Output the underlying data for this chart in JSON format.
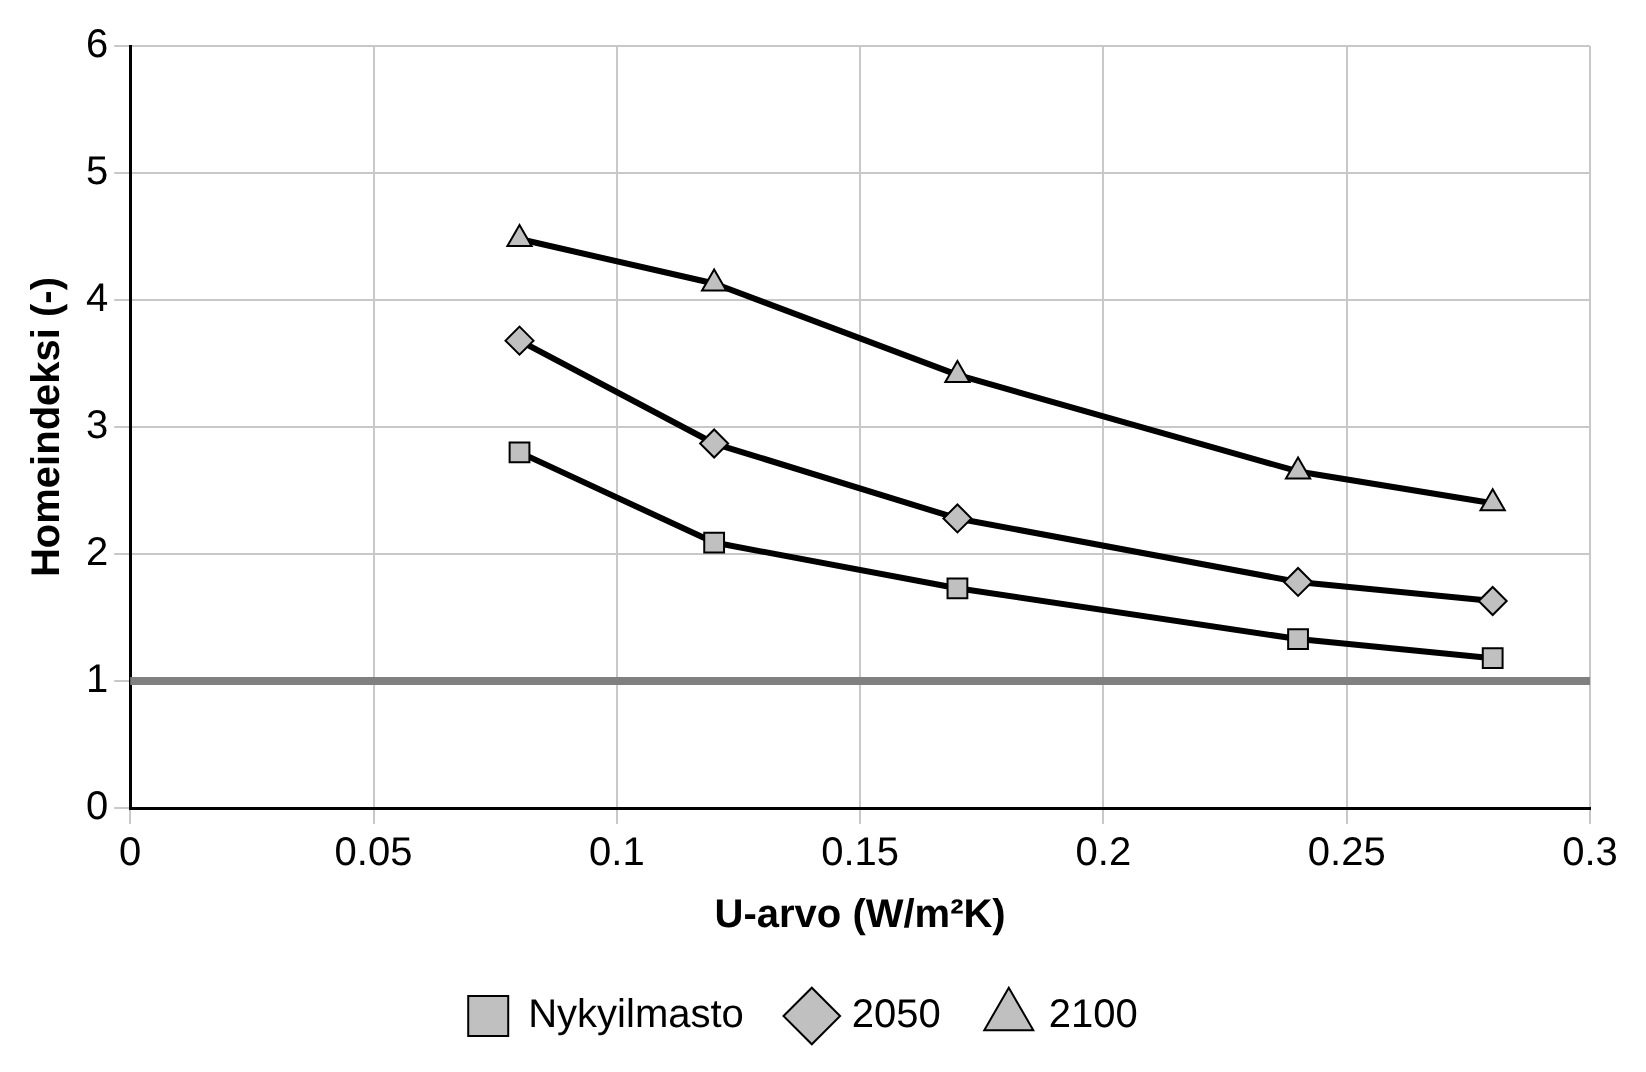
{
  "chart_data": {
    "type": "line",
    "xlabel": "U-arvo (W/m²K)",
    "ylabel": "Homeindeksi (-)",
    "xlim": [
      0,
      0.3
    ],
    "xticks": [
      0,
      0.05,
      0.1,
      0.15,
      0.2,
      0.25,
      0.3
    ],
    "ylim": [
      0,
      6
    ],
    "yticks": [
      0,
      1,
      2,
      3,
      4,
      5,
      6
    ],
    "grid": true,
    "legend": "bottom",
    "line_style": "solid",
    "x": [
      0.08,
      0.12,
      0.17,
      0.24,
      0.28
    ],
    "series": [
      {
        "name": "Nykyilmasto",
        "color": "#000000",
        "marker": "square",
        "values": [
          2.8,
          2.09,
          1.73,
          1.33,
          1.18
        ]
      },
      {
        "name": "2050",
        "color": "#000000",
        "marker": "diamond",
        "values": [
          3.68,
          2.87,
          2.28,
          1.78,
          1.63
        ]
      },
      {
        "name": "2100",
        "color": "#000000",
        "marker": "triangle",
        "values": [
          4.48,
          4.13,
          3.41,
          2.65,
          2.4
        ]
      }
    ],
    "ref_lines": [
      {
        "axis": "y",
        "value": 1,
        "color": "#808080"
      }
    ]
  }
}
